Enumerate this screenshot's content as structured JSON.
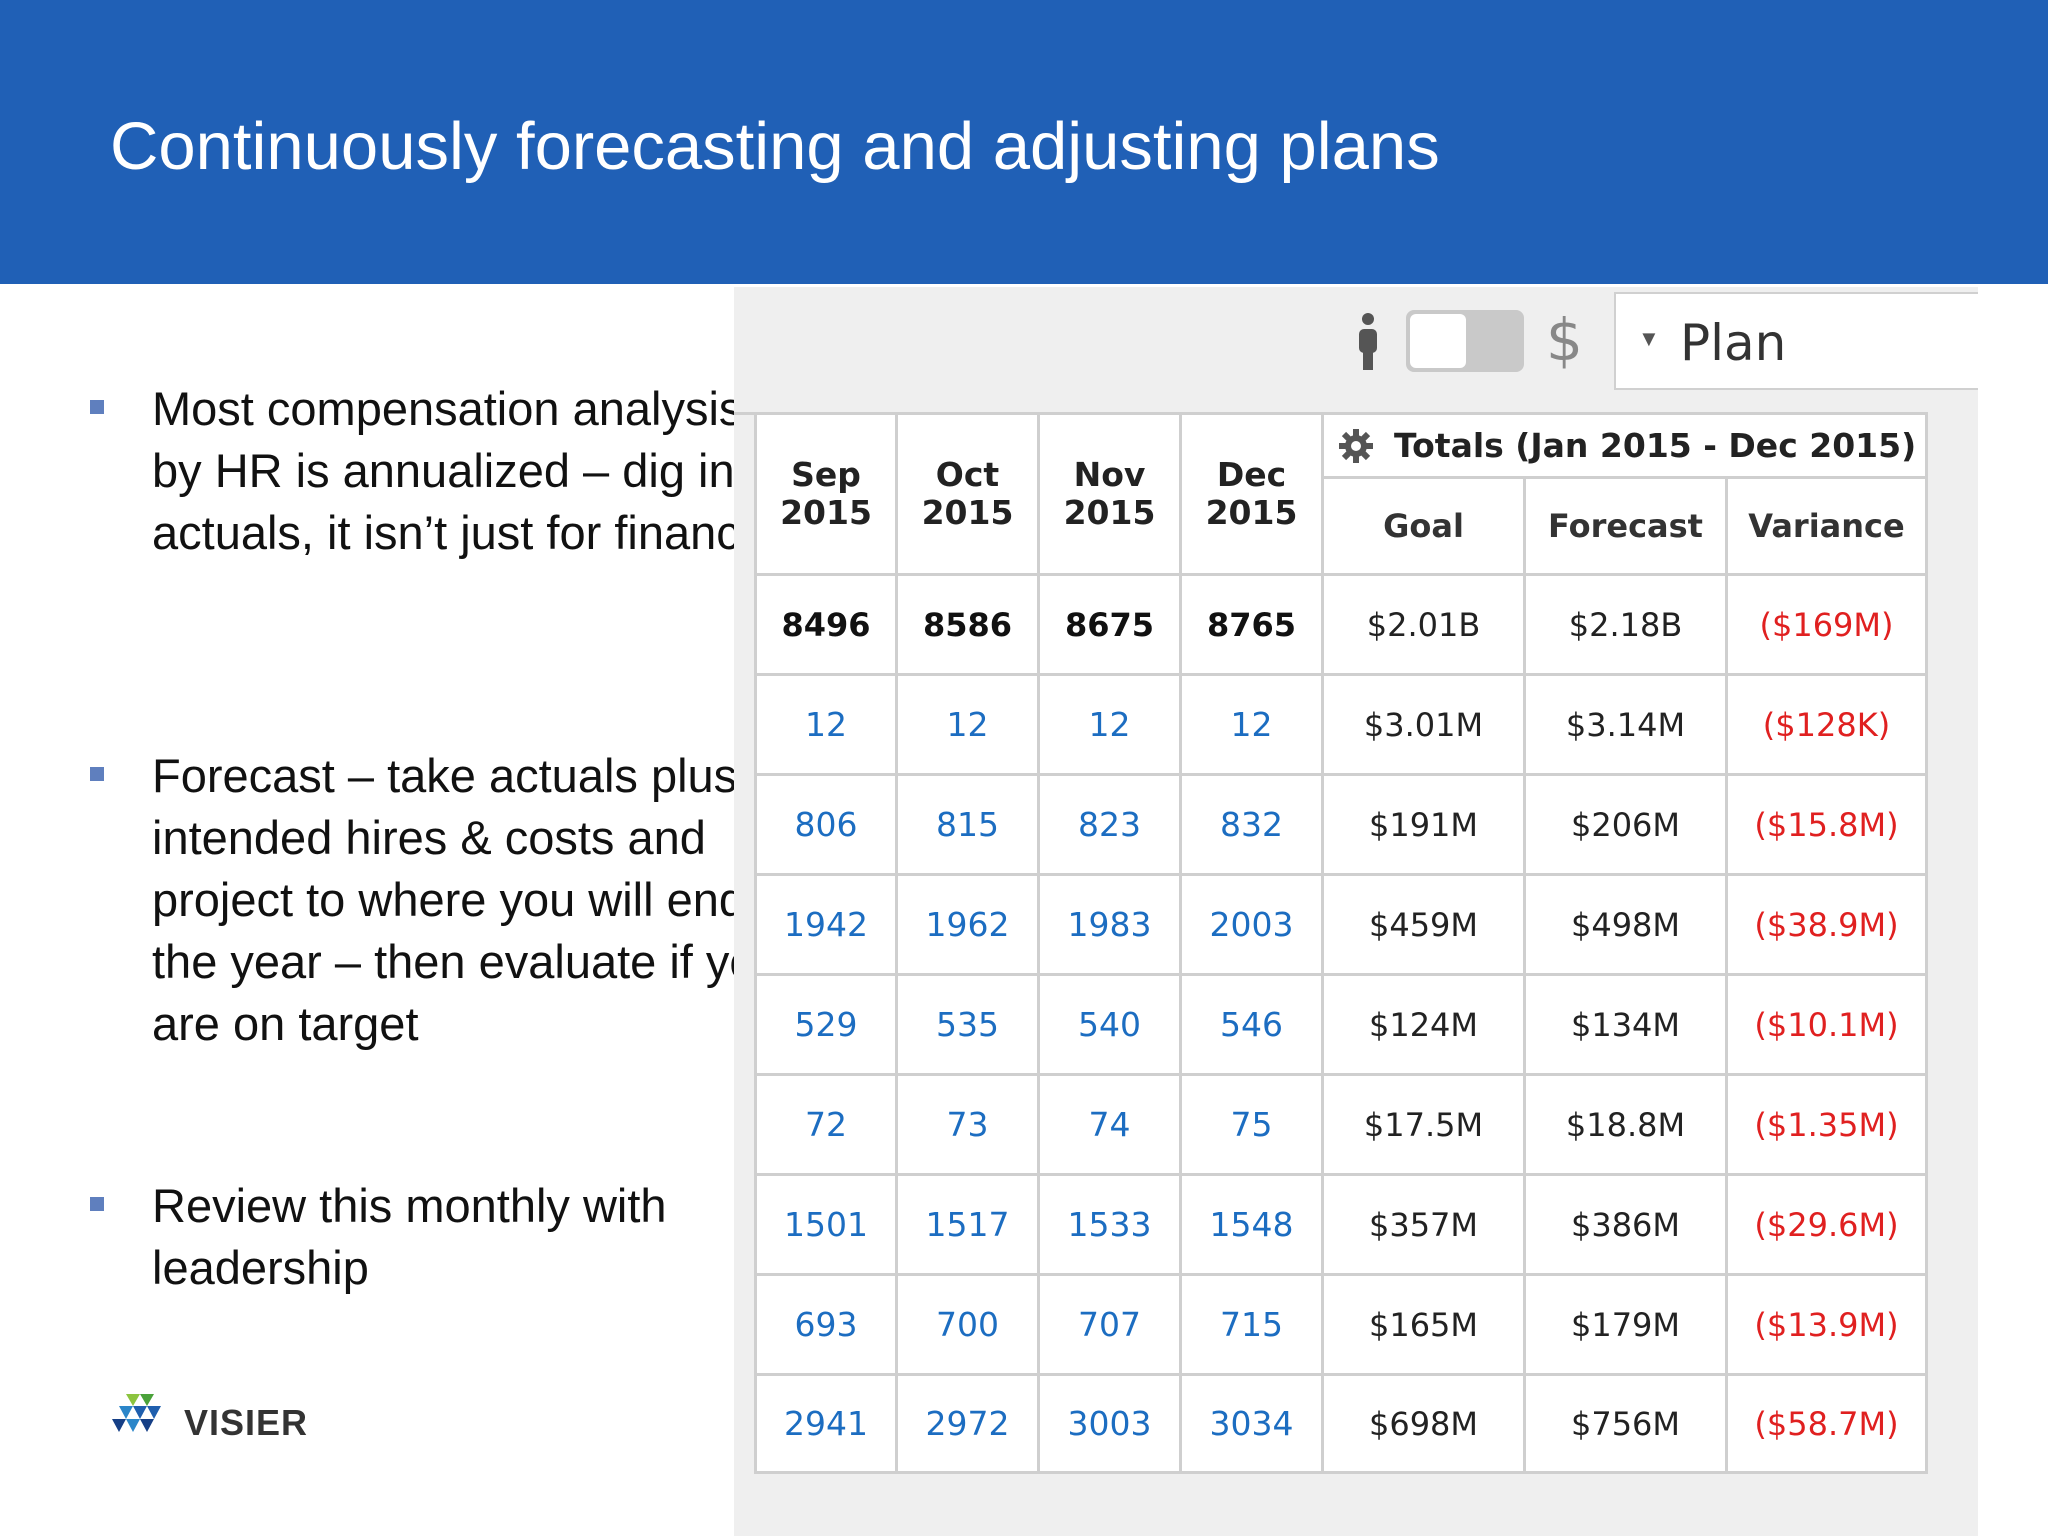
{
  "slide": {
    "title": "Continuously forecasting and adjusting plans",
    "bullets": [
      "Most compensation analysis by HR is annualized – dig into actuals, it isn’t just for finance",
      "Forecast – take actuals plus intended hires & costs and project to where you will end the year – then evaluate if you are on target",
      "Review this monthly with leadership"
    ],
    "logo_text": "VISIER"
  },
  "toolbar": {
    "currency_symbol": "$",
    "plan_select_value": "Plan"
  },
  "table": {
    "months": [
      {
        "month": "Sep",
        "year": "2015"
      },
      {
        "month": "Oct",
        "year": "2015"
      },
      {
        "month": "Nov",
        "year": "2015"
      },
      {
        "month": "Dec",
        "year": "2015"
      }
    ],
    "totals_header": "Totals (Jan 2015 - Dec 2015)",
    "totals_columns": [
      "Goal",
      "Forecast",
      "Variance"
    ],
    "rows": [
      {
        "months": [
          "8496",
          "8586",
          "8675",
          "8765"
        ],
        "goal": "$2.01B",
        "forecast": "$2.18B",
        "variance": "($169M)"
      },
      {
        "months": [
          "12",
          "12",
          "12",
          "12"
        ],
        "goal": "$3.01M",
        "forecast": "$3.14M",
        "variance": "($128K)"
      },
      {
        "months": [
          "806",
          "815",
          "823",
          "832"
        ],
        "goal": "$191M",
        "forecast": "$206M",
        "variance": "($15.8M)"
      },
      {
        "months": [
          "1942",
          "1962",
          "1983",
          "2003"
        ],
        "goal": "$459M",
        "forecast": "$498M",
        "variance": "($38.9M)"
      },
      {
        "months": [
          "529",
          "535",
          "540",
          "546"
        ],
        "goal": "$124M",
        "forecast": "$134M",
        "variance": "($10.1M)"
      },
      {
        "months": [
          "72",
          "73",
          "74",
          "75"
        ],
        "goal": "$17.5M",
        "forecast": "$18.8M",
        "variance": "($1.35M)"
      },
      {
        "months": [
          "1501",
          "1517",
          "1533",
          "1548"
        ],
        "goal": "$357M",
        "forecast": "$386M",
        "variance": "($29.6M)"
      },
      {
        "months": [
          "693",
          "700",
          "707",
          "715"
        ],
        "goal": "$165M",
        "forecast": "$179M",
        "variance": "($13.9M)"
      },
      {
        "months": [
          "2941",
          "2972",
          "3003",
          "3034"
        ],
        "goal": "$698M",
        "forecast": "$756M",
        "variance": "($58.7M)"
      }
    ]
  },
  "colors": {
    "header_bg": "#2060b6",
    "link_blue": "#1c6dc1",
    "negative_red": "#e02020"
  }
}
